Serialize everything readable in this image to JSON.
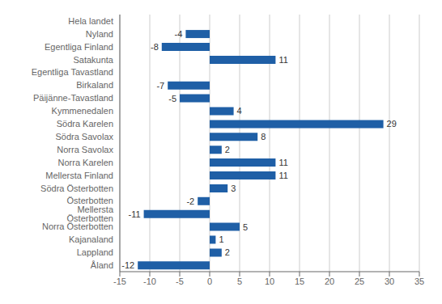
{
  "chart_data": {
    "type": "bar",
    "orientation": "horizontal",
    "categories": [
      "Hela landet",
      "Nyland",
      "Egentliga Finland",
      "Satakunta",
      "Egentliga Tavastland",
      "Birkaland",
      "Päijänne-Tavastland",
      "Kymmenedalen",
      "Södra Karelen",
      "Södra Savolax",
      "Norra Savolax",
      "Norra Karelen",
      "Mellersta Finland",
      "Södra Österbotten",
      "Österbotten",
      "Mellersta Österbotten",
      "Norra Österbotten",
      "Kajanaland",
      "Lappland",
      "Åland"
    ],
    "values": [
      0,
      -4,
      -8,
      11,
      0,
      -7,
      -5,
      4,
      29,
      8,
      2,
      11,
      11,
      3,
      -2,
      -11,
      5,
      1,
      2,
      -12
    ],
    "color": "#1F5FA6",
    "xlim": [
      -15,
      35
    ],
    "xticks": [
      -15,
      -10,
      -5,
      0,
      5,
      10,
      15,
      20,
      25,
      30,
      35
    ],
    "grid": "x",
    "data_labels": true
  }
}
